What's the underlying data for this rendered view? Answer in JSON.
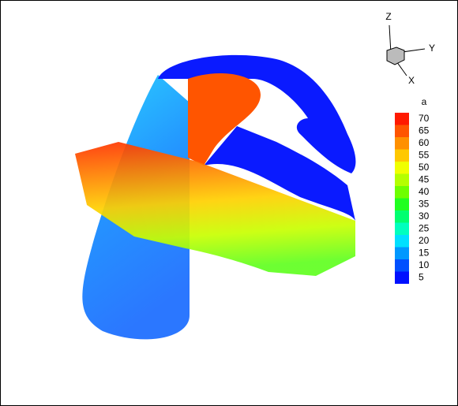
{
  "chart_data": {
    "type": "contour",
    "legend_title": "a",
    "levels": [
      70,
      65,
      60,
      55,
      50,
      45,
      40,
      35,
      30,
      25,
      20,
      15,
      10,
      5
    ],
    "colors": [
      "#ff1a00",
      "#ff5500",
      "#ff9000",
      "#ffc800",
      "#f0ff00",
      "#b4ff00",
      "#6eff00",
      "#20ff20",
      "#00ff70",
      "#00ffbe",
      "#00e0ff",
      "#0098ff",
      "#0050ff",
      "#0010ff"
    ],
    "axis_labels": [
      "Z",
      "Y",
      "X"
    ]
  }
}
